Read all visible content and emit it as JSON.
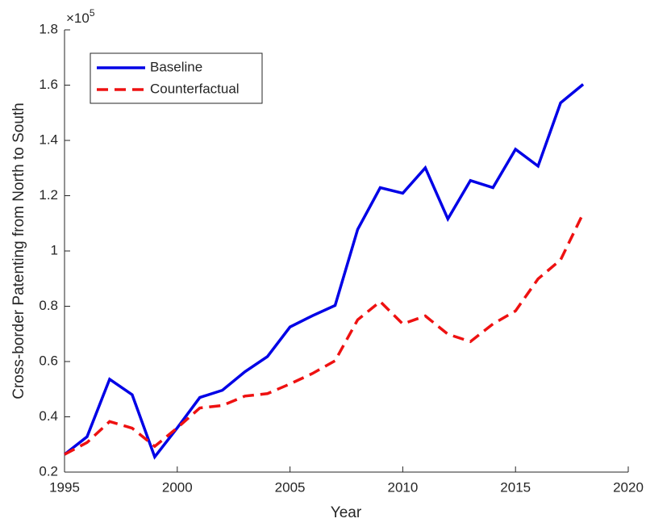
{
  "chart_data": {
    "type": "line",
    "xlabel": "Year",
    "ylabel": "Cross-border Patenting from North to South",
    "y_multiplier_base": "×10",
    "y_multiplier_exponent": "5",
    "x": [
      1995,
      1996,
      1997,
      1998,
      1999,
      2000,
      2001,
      2002,
      2003,
      2004,
      2005,
      2006,
      2007,
      2008,
      2009,
      2010,
      2011,
      2012,
      2013,
      2014,
      2015,
      2016,
      2017,
      2018
    ],
    "series": [
      {
        "name": "Baseline",
        "color": "#0000e6",
        "dash": "solid",
        "values": [
          0.264,
          0.328,
          0.536,
          0.48,
          0.255,
          0.36,
          0.47,
          0.496,
          0.563,
          0.618,
          0.725,
          0.766,
          0.803,
          1.078,
          1.229,
          1.209,
          1.301,
          1.116,
          1.255,
          1.229,
          1.368,
          1.307,
          1.536,
          1.603
        ]
      },
      {
        "name": "Counterfactual",
        "color": "#ee1111",
        "dash": "dashed",
        "values": [
          0.264,
          0.307,
          0.383,
          0.359,
          0.293,
          0.36,
          0.432,
          0.441,
          0.475,
          0.484,
          0.519,
          0.557,
          0.603,
          0.751,
          0.817,
          0.736,
          0.765,
          0.699,
          0.672,
          0.736,
          0.783,
          0.899,
          0.968,
          1.136
        ]
      }
    ],
    "xlim": [
      1995,
      2020
    ],
    "xticks": [
      1995,
      2000,
      2005,
      2010,
      2015,
      2020
    ],
    "ylim": [
      0.2,
      1.8
    ],
    "yticks": [
      0.2,
      0.4,
      0.6,
      0.8,
      1,
      1.2,
      1.4,
      1.6,
      1.8
    ],
    "legend": "upper-left"
  }
}
